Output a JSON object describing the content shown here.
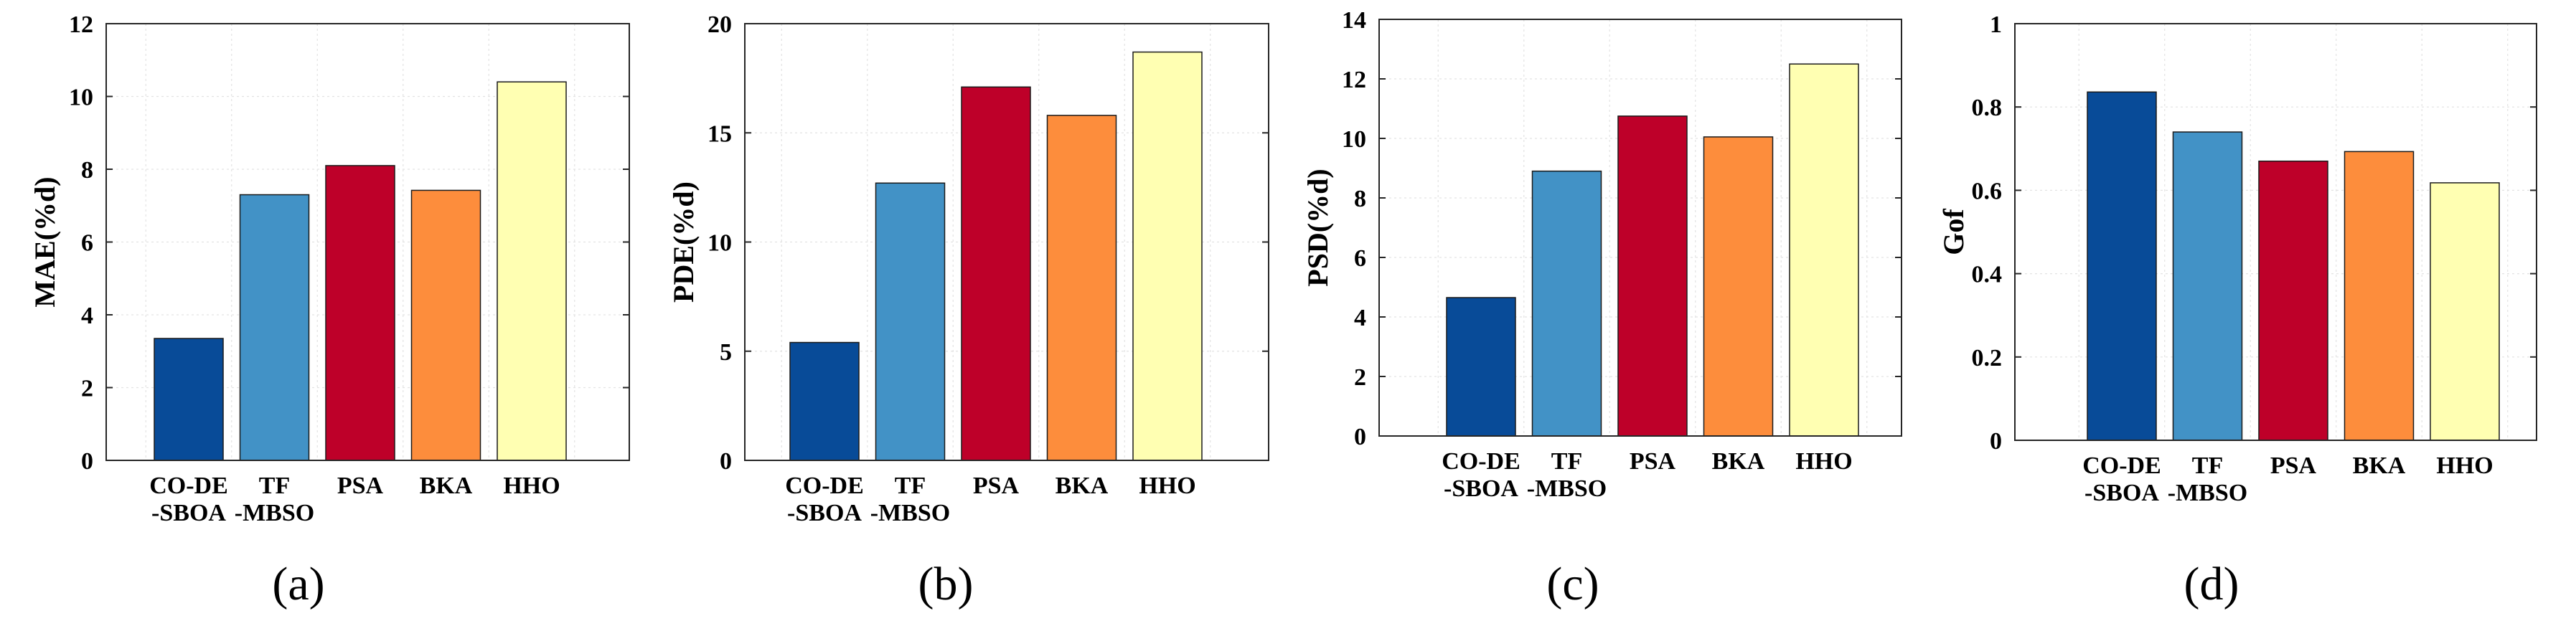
{
  "figure": {
    "colors": [
      "#084b98",
      "#4292c6",
      "#be0029",
      "#fd8d3c",
      "#ffffb2"
    ]
  },
  "chart_data": [
    {
      "type": "bar",
      "panel_label": "(a)",
      "ylabel": "MAE(%d)",
      "categories": [
        [
          "CO-DE",
          "-SBOA"
        ],
        [
          "TF",
          "-MBSO"
        ],
        [
          "PSA"
        ],
        [
          "BKA"
        ],
        [
          "HHO"
        ]
      ],
      "values": [
        3.35,
        7.3,
        8.1,
        7.42,
        10.4
      ],
      "ylim": [
        0,
        12
      ],
      "yticks": [
        0,
        2,
        4,
        6,
        8,
        10,
        12
      ],
      "ytick_labels": [
        "0",
        "2",
        "4",
        "6",
        "8",
        "10",
        "12"
      ],
      "grid": true
    },
    {
      "type": "bar",
      "panel_label": "(b)",
      "ylabel": "PDE(%d)",
      "categories": [
        [
          "CO-DE",
          "-SBOA"
        ],
        [
          "TF",
          "-MBSO"
        ],
        [
          "PSA"
        ],
        [
          "BKA"
        ],
        [
          "HHO"
        ]
      ],
      "values": [
        5.4,
        12.7,
        17.1,
        15.8,
        18.7
      ],
      "ylim": [
        0,
        20
      ],
      "yticks": [
        0,
        5,
        10,
        15,
        20
      ],
      "ytick_labels": [
        "0",
        "5",
        "10",
        "15",
        "20"
      ],
      "grid": true
    },
    {
      "type": "bar",
      "panel_label": "(c)",
      "ylabel": "PSD(%d)",
      "categories": [
        [
          "CO-DE",
          "-SBOA"
        ],
        [
          "TF",
          "-MBSO"
        ],
        [
          "PSA"
        ],
        [
          "BKA"
        ],
        [
          "HHO"
        ]
      ],
      "values": [
        4.65,
        8.9,
        10.75,
        10.05,
        12.5
      ],
      "ylim": [
        0,
        14
      ],
      "yticks": [
        0,
        2,
        4,
        6,
        8,
        10,
        12,
        14
      ],
      "ytick_labels": [
        "0",
        "2",
        "4",
        "6",
        "8",
        "10",
        "12",
        "14"
      ],
      "grid": true
    },
    {
      "type": "bar",
      "panel_label": "(d)",
      "ylabel": "Gof",
      "categories": [
        [
          "CO-DE",
          "-SBOA"
        ],
        [
          "TF",
          "-MBSO"
        ],
        [
          "PSA"
        ],
        [
          "BKA"
        ],
        [
          "HHO"
        ]
      ],
      "values": [
        0.836,
        0.74,
        0.67,
        0.693,
        0.618
      ],
      "ylim": [
        0,
        1
      ],
      "yticks": [
        0,
        0.2,
        0.4,
        0.6,
        0.8,
        1
      ],
      "ytick_labels": [
        "0",
        "0.2",
        "0.4",
        "0.6",
        "0.8",
        "1"
      ],
      "grid": true
    }
  ]
}
